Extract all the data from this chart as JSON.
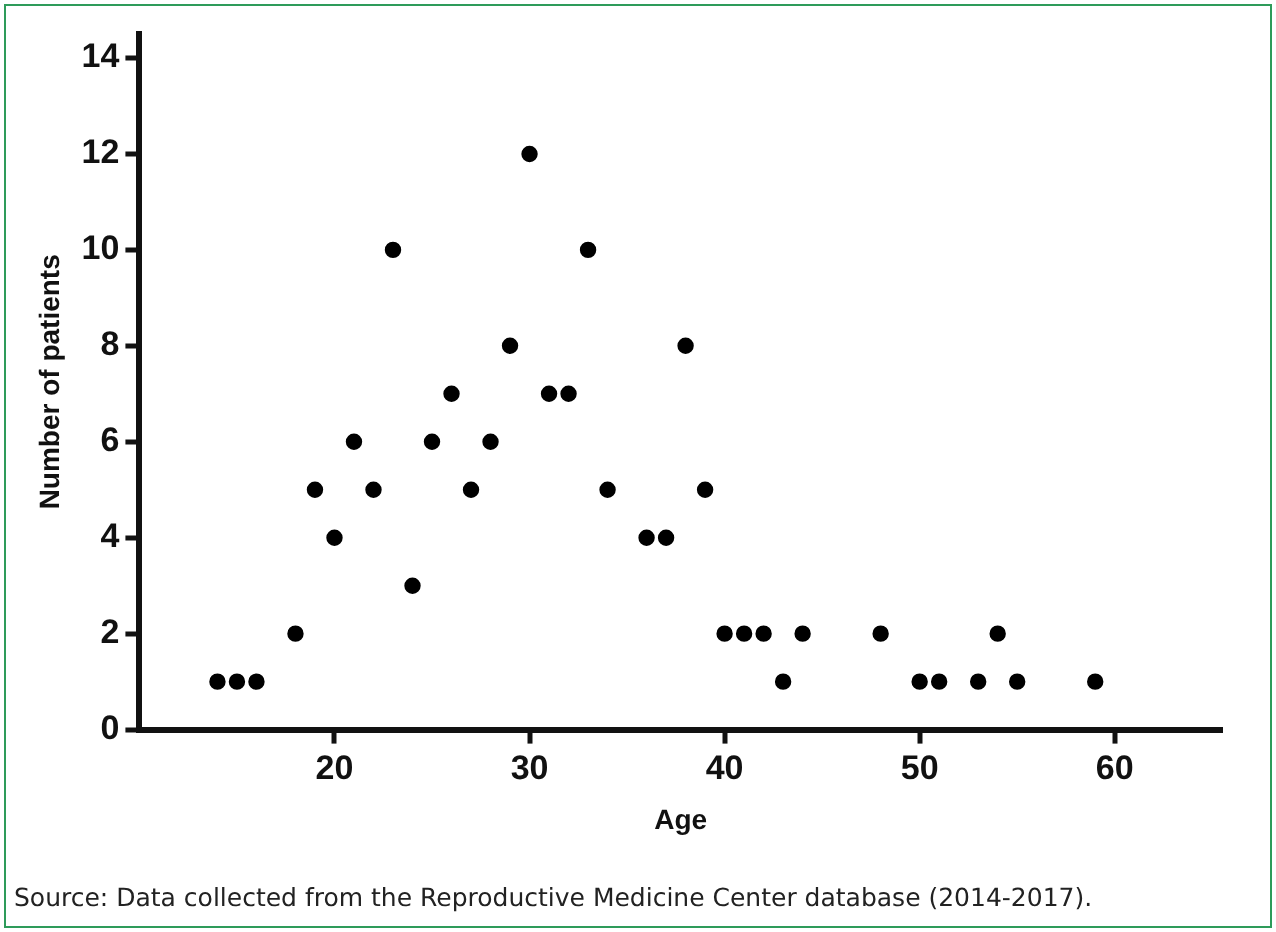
{
  "chart_data": {
    "type": "scatter",
    "xlabel": "Age",
    "ylabel": "Number of patients",
    "x": [
      14,
      15,
      16,
      18,
      19,
      20,
      21,
      22,
      23,
      24,
      25,
      26,
      27,
      28,
      29,
      30,
      31,
      32,
      33,
      34,
      36,
      37,
      38,
      39,
      40,
      41,
      42,
      43,
      44,
      48,
      50,
      51,
      53,
      54,
      55,
      59
    ],
    "series": [
      {
        "color": "#000000",
        "values": [
          1,
          1,
          1,
          2,
          5,
          4,
          6,
          5,
          10,
          3,
          6,
          7,
          5,
          6,
          8,
          12,
          7,
          7,
          10,
          5,
          4,
          4,
          8,
          5,
          2,
          2,
          2,
          1,
          2,
          2,
          1,
          1,
          1,
          2,
          1,
          1
        ]
      }
    ],
    "xlim": [
      10,
      65.5
    ],
    "xticks": [
      20,
      30,
      40,
      50,
      60
    ],
    "ylim": [
      0,
      14.5
    ],
    "yticks": [
      0,
      2,
      4,
      6,
      8,
      10,
      12,
      14
    ],
    "grid": false,
    "legend": false,
    "marker": "circle",
    "annotations": [
      "Source: Data collected from the Reproductive Medicine Center database (2014-2017)."
    ]
  }
}
